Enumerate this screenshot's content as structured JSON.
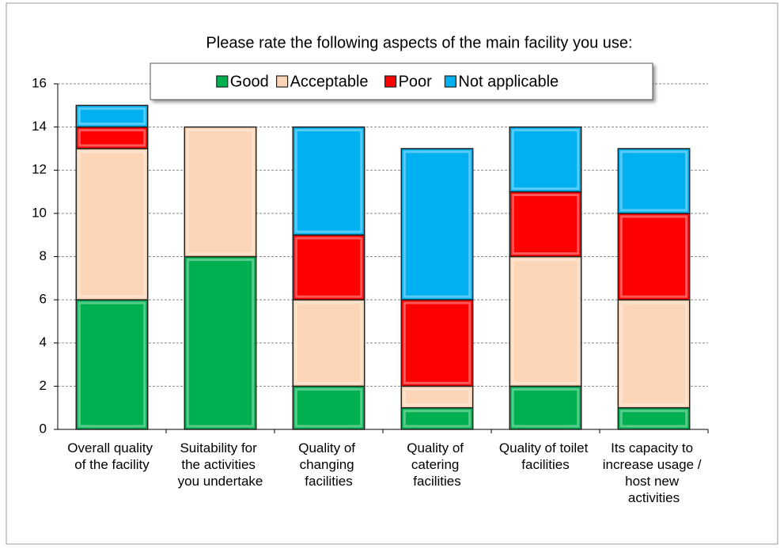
{
  "chart_data": {
    "type": "stacked_bar",
    "title": "Please rate the following aspects of the main facility you use:",
    "categories": [
      "Overall quality of the facility",
      "Suitability for the activities you undertake",
      "Quality of changing facilities",
      "Quality of catering facilities",
      "Quality of toilet facilities",
      "Its capacity to increase usage / host new activities"
    ],
    "series": [
      {
        "name": "Good",
        "color": "#00b050",
        "values": [
          6,
          8,
          2,
          1,
          2,
          1
        ]
      },
      {
        "name": "Acceptable",
        "color": "#fbd5b5",
        "values": [
          7,
          6,
          4,
          1,
          6,
          5
        ]
      },
      {
        "name": "Poor",
        "color": "#ff0000",
        "values": [
          1,
          0,
          3,
          4,
          3,
          4
        ]
      },
      {
        "name": "Not applicable",
        "color": "#00b0f0",
        "values": [
          1,
          0,
          5,
          7,
          3,
          3
        ]
      }
    ],
    "ylim": [
      0,
      16
    ],
    "yticks": [
      0,
      2,
      4,
      6,
      8,
      10,
      12,
      14,
      16
    ],
    "grid": true,
    "legend": "top"
  }
}
